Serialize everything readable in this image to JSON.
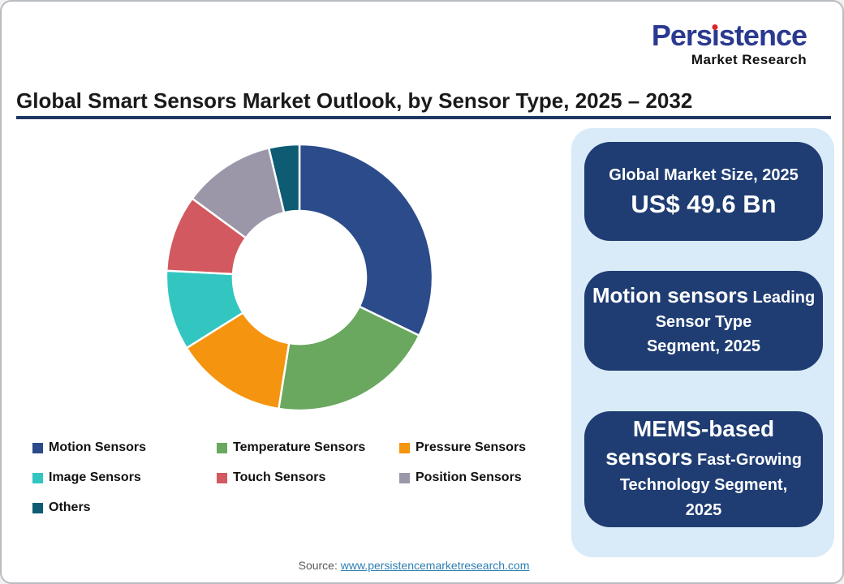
{
  "logo": {
    "brand": "Persistence",
    "subtitle": "Market Research"
  },
  "title": "Global Smart Sensors Market Outlook, by Sensor Type, 2025 – 2032",
  "chart_data": {
    "type": "pie",
    "donut": true,
    "title": "Global Smart Sensors Market Outlook, by Sensor Type, 2025 – 2032",
    "unit": "% share of market (estimated from arc angles)",
    "start_angle_deg": 0,
    "direction": "clockwise",
    "inner_radius_ratio": 0.5,
    "legend_position": "bottom-left",
    "segments": [
      {
        "label": "Motion Sensors",
        "value_pct": 32.2,
        "color": "#2c4b8b"
      },
      {
        "label": "Temperature Sensors",
        "value_pct": 20.3,
        "color": "#69a85e"
      },
      {
        "label": "Pressure Sensors",
        "value_pct": 13.6,
        "color": "#f5940f"
      },
      {
        "label": "Image Sensors",
        "value_pct": 9.7,
        "color": "#33c6c1"
      },
      {
        "label": "Touch Sensors",
        "value_pct": 9.3,
        "color": "#d2595f"
      },
      {
        "label": "Position Sensors",
        "value_pct": 11.2,
        "color": "#9b97a9"
      },
      {
        "label": "Others",
        "value_pct": 3.7,
        "color": "#0d5c74"
      }
    ]
  },
  "panel": {
    "box1": {
      "line1": "Global Market Size, 2025",
      "value": "US$ 49.6 Bn"
    },
    "box2": {
      "big": "Motion sensors",
      "small": "Leading",
      "line2": "Sensor Type",
      "line3": "Segment, 2025"
    },
    "box3": {
      "big1": "MEMS-based",
      "big2": "sensors",
      "small": "Fast-Growing",
      "line3": "Technology Segment,",
      "line4": "2025"
    }
  },
  "footer": {
    "source_label": "Source:",
    "source_link": "www.persistencemarketresearch.com"
  },
  "colors": {
    "title_text": "#1a1a1a",
    "underline": "#1f3864",
    "logo_blue": "#2b3990",
    "logo_dot": "#d9262c",
    "logo_sub": "#111111",
    "panel_bg": "#d9eaf8",
    "box_bg": "#1f3d73",
    "box_text": "#ffffff",
    "link": "#2e7fb2",
    "source_text": "#595959",
    "card_border": "#b8bcc0"
  }
}
